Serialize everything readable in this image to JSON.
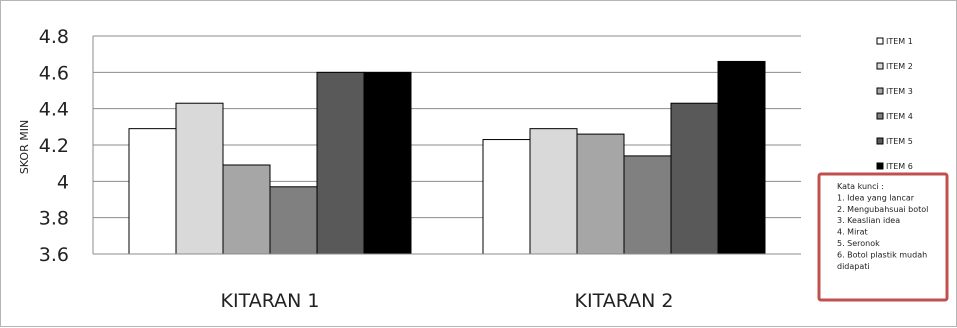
{
  "chart_data": {
    "type": "bar",
    "title": "",
    "xlabel": "",
    "ylabel": "SKOR MIN",
    "ylim": [
      3.6,
      4.8
    ],
    "yticks": [
      "4.8",
      "4.6",
      "4.4",
      "4.2",
      "4",
      "3.8",
      "3.6"
    ],
    "grid": true,
    "legend_position": "right",
    "categories": [
      "KITARAN 1",
      "KITARAN 2"
    ],
    "series": [
      {
        "name": "ITEM 1",
        "color": "#ffffff",
        "values": [
          4.29,
          4.23
        ]
      },
      {
        "name": "ITEM 2",
        "color": "#d9d9d9",
        "values": [
          4.43,
          4.29
        ]
      },
      {
        "name": "ITEM 3",
        "color": "#a6a6a6",
        "values": [
          4.09,
          4.26
        ]
      },
      {
        "name": "ITEM 4",
        "color": "#808080",
        "values": [
          3.97,
          4.14
        ]
      },
      {
        "name": "ITEM 5",
        "color": "#595959",
        "values": [
          4.6,
          4.43
        ]
      },
      {
        "name": "ITEM 6",
        "color": "#000000",
        "values": [
          4.6,
          4.66
        ]
      }
    ],
    "annotation": {
      "border_color": "#c0504d",
      "lines": [
        "Kata kunci :",
        "1. Idea yang lancar",
        "2. Mengubahsuai botol",
        "3. Keaslian idea",
        "4. Mirat",
        "5. Seronok",
        "6. Botol plastik mudah",
        "didapati"
      ]
    }
  }
}
